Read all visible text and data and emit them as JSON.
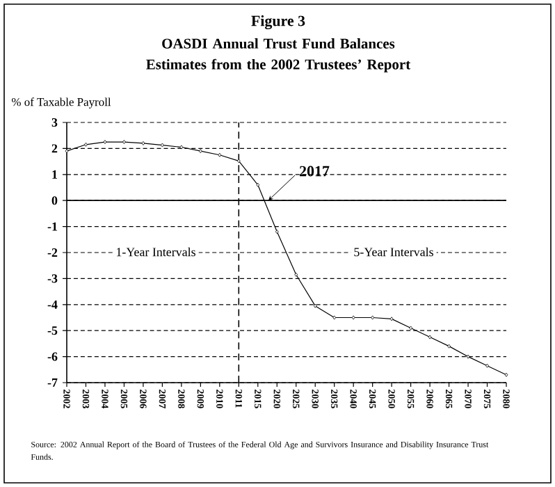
{
  "chart_data": {
    "type": "line",
    "title": "Figure 3",
    "subtitle": "OASDI Annual Trust Fund Balances Estimates from the 2002 Trustees’ Report",
    "ylabel": "% of Taxable Payroll",
    "categories": [
      "2002",
      "2003",
      "2004",
      "2005",
      "2006",
      "2007",
      "2008",
      "2009",
      "2010",
      "2011",
      "2015",
      "2020",
      "2025",
      "2030",
      "2035",
      "2040",
      "2045",
      "2050",
      "2055",
      "2060",
      "2065",
      "2070",
      "2075",
      "2080"
    ],
    "series": [
      {
        "color": "#000000",
        "values": [
          1.9,
          2.15,
          2.25,
          2.25,
          2.2,
          2.13,
          2.05,
          1.9,
          1.75,
          1.52,
          0.6,
          -1.2,
          -2.85,
          -4.05,
          -4.5,
          -4.5,
          -4.5,
          -4.55,
          -4.9,
          -5.25,
          -5.6,
          -6.0,
          -6.35,
          -6.7
        ]
      }
    ],
    "ylim": [
      -7,
      3
    ],
    "yticks": [
      -7,
      -6,
      -5,
      -4,
      -3,
      -2,
      -1,
      0,
      1,
      2,
      3
    ],
    "grid": "y",
    "marker": "diamond",
    "ref_lines": [
      {
        "axis": "y",
        "value": 0,
        "line_style": "solid"
      },
      {
        "axis": "x",
        "value": "2011",
        "line_style": "dashed"
      }
    ],
    "annotations": [
      "2017",
      "1-Year Intervals",
      "5-Year Intervals",
      "Source: 2002 Annual Report of the Board of Trustees of the Federal Old Age and Survivors Insurance and Disability Insurance Trust Funds."
    ]
  }
}
